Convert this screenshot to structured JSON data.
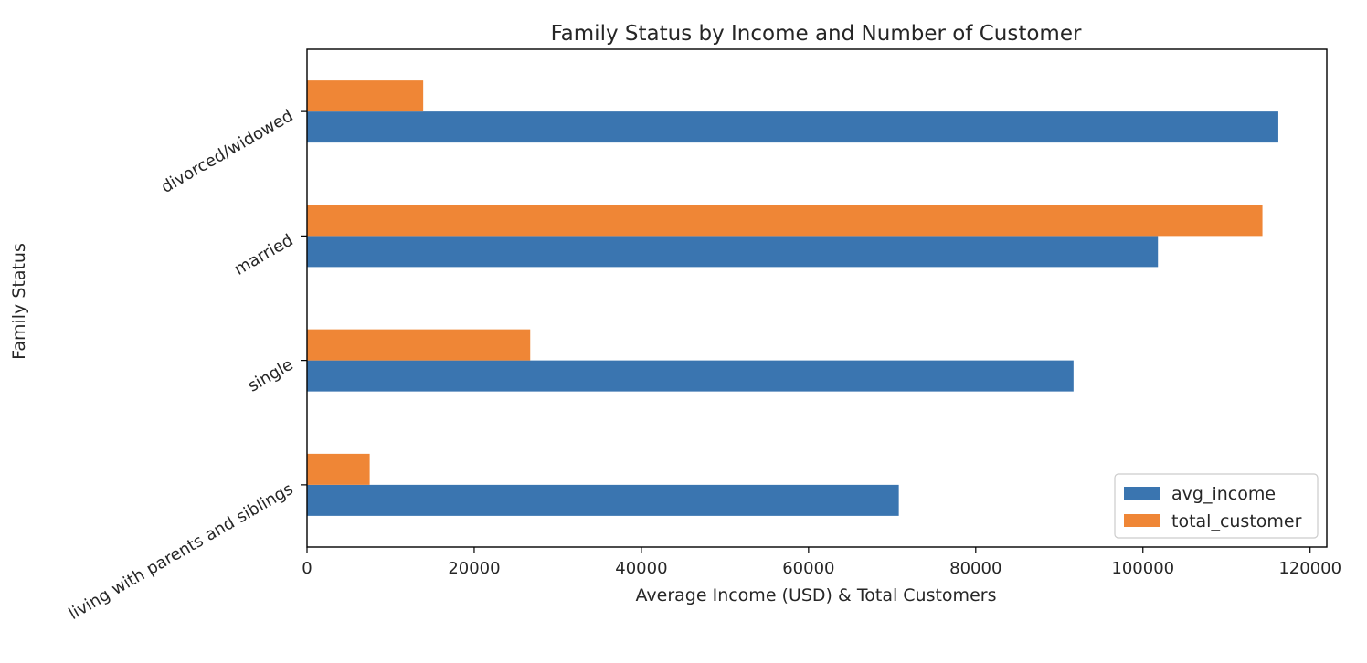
{
  "chart_data": {
    "type": "bar",
    "orientation": "horizontal",
    "title": "Family Status by Income and Number of Customer",
    "xlabel": "Average Income (USD) & Total Customers",
    "ylabel": "Family Status",
    "categories": [
      "living with parents and siblings",
      "single",
      "married",
      "divorced/widowed"
    ],
    "series": [
      {
        "name": "avg_income",
        "color": "#3a75b0",
        "values": [
          70800,
          91700,
          101800,
          116200
        ]
      },
      {
        "name": "total_customer",
        "color": "#ef8636",
        "values": [
          7500,
          26700,
          114300,
          13900
        ]
      }
    ],
    "xlim": [
      0,
      122000
    ],
    "xticks": [
      0,
      20000,
      40000,
      60000,
      80000,
      100000,
      120000
    ],
    "grid": false,
    "legend_position": "lower-right"
  }
}
